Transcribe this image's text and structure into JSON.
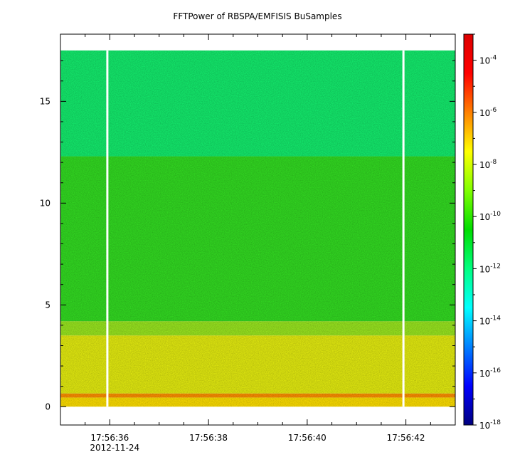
{
  "chart_data": {
    "type": "heatmap",
    "title": "FFTPower of RBSPA/EMFISIS  BuSamples",
    "xlabel": "",
    "ylabel": "",
    "x_ticks": [
      {
        "label": "17:56:36",
        "sublabel": "2012-11-24",
        "t": 36
      },
      {
        "label": "17:56:38",
        "sublabel": "",
        "t": 38
      },
      {
        "label": "17:56:40",
        "sublabel": "",
        "t": 40
      },
      {
        "label": "17:56:42",
        "sublabel": "",
        "t": 42
      }
    ],
    "x_range_seconds": [
      35.0,
      43.0
    ],
    "y_ticks": [
      0,
      5,
      10,
      15
    ],
    "ylim": [
      -0.9,
      18.3
    ],
    "data_y_range": [
      0,
      17.5
    ],
    "gaps_seconds": [
      35.95,
      41.95
    ],
    "bands": [
      {
        "y0": 0.0,
        "y1": 0.45,
        "color": "#ffe000"
      },
      {
        "y0": 0.45,
        "y1": 0.65,
        "color": "#ff9000"
      },
      {
        "y0": 0.65,
        "y1": 3.5,
        "color": "#e6ee10"
      },
      {
        "y0": 3.5,
        "y1": 4.2,
        "color": "#9ae820"
      },
      {
        "y0": 4.2,
        "y1": 12.3,
        "color": "#33dd22"
      },
      {
        "y0": 12.3,
        "y1": 17.5,
        "color": "#14ee6e"
      }
    ],
    "colorbar": {
      "scale": "log",
      "range": [
        1e-18,
        0.001
      ],
      "ticks": [
        {
          "base": "10",
          "exp": "-4",
          "value": 0.0001
        },
        {
          "base": "10",
          "exp": "-6",
          "value": 1e-06
        },
        {
          "base": "10",
          "exp": "-8",
          "value": 1e-08
        },
        {
          "base": "10",
          "exp": "-10",
          "value": 1e-10
        },
        {
          "base": "10",
          "exp": "-12",
          "value": 1e-12
        },
        {
          "base": "10",
          "exp": "-14",
          "value": 1e-14
        },
        {
          "base": "10",
          "exp": "-16",
          "value": 1e-16
        },
        {
          "base": "10",
          "exp": "-18",
          "value": 1e-18
        }
      ],
      "colors": [
        "#00007f",
        "#0000ff",
        "#0080ff",
        "#00ffff",
        "#00ff80",
        "#00dd00",
        "#80ff00",
        "#ffff00",
        "#ff8000",
        "#ff0000",
        "#dd0000"
      ]
    }
  }
}
